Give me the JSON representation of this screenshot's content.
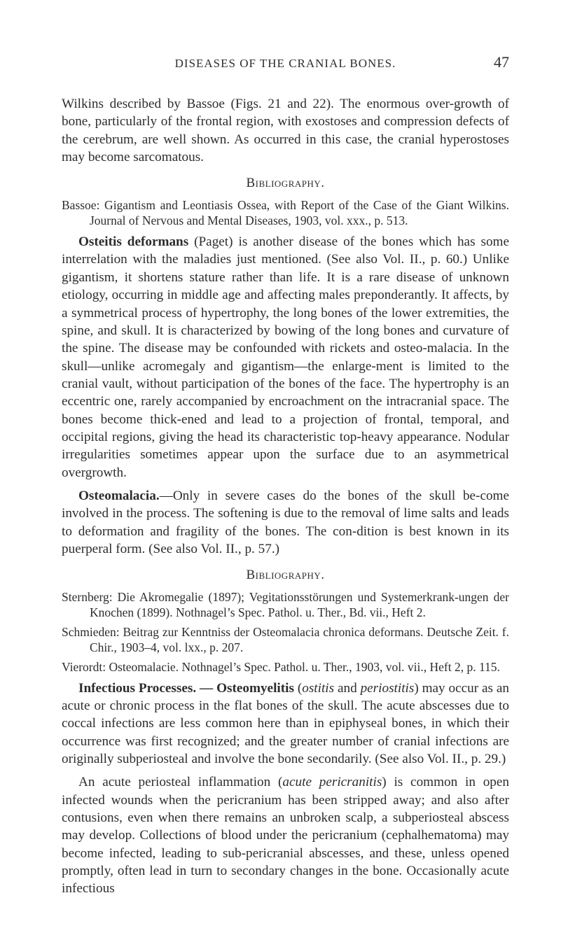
{
  "header": {
    "running_title": "DISEASES OF THE CRANIAL BONES.",
    "page_number": "47"
  },
  "para1": "Wilkins described by Bassoe (Figs. 21 and 22). The enormous over-growth of bone, particularly of the frontal region, with exostoses and compression defects of the cerebrum, are well shown. As occurred in this case, the cranial hyperostoses may become sarcomatous.",
  "bib1": {
    "heading": "Bibliography.",
    "entry": "Bassoe: Gigantism and Leontiasis Ossea, with Report of the Case of the Giant Wilkins. Journal of Nervous and Mental Diseases, 1903, vol. xxx., p. 513."
  },
  "para2": {
    "lead": "Osteitis deformans",
    "rest": " (Paget) is another disease of the bones which has some interrelation with the maladies just mentioned. (See also Vol. II., p. 60.) Unlike gigantism, it shortens stature rather than life. It is a rare disease of unknown etiology, occurring in middle age and affecting males preponderantly. It affects, by a symmetrical process of hypertrophy, the long bones of the lower extremities, the spine, and skull. It is characterized by bowing of the long bones and curvature of the spine. The disease may be confounded with rickets and osteo-malacia. In the skull—unlike acromegaly and gigantism—the enlarge-ment is limited to the cranial vault, without participation of the bones of the face. The hypertrophy is an eccentric one, rarely accompanied by encroachment on the intracranial space. The bones become thick-ened and lead to a projection of frontal, temporal, and occipital regions, giving the head its characteristic top-heavy appearance. Nodular irregularities sometimes appear upon the surface due to an asymmetrical overgrowth."
  },
  "para3": {
    "lead": "Osteomalacia.",
    "rest": "—Only in severe cases do the bones of the skull be-come involved in the process. The softening is due to the removal of lime salts and leads to deformation and fragility of the bones. The con-dition is best known in its puerperal form. (See also Vol. II., p. 57.)"
  },
  "bib2": {
    "heading": "Bibliography.",
    "entry1": "Sternberg: Die Akromegalie (1897); Vegitationsstörungen und Systemerkrank-ungen der Knochen (1899). Nothnagel’s Spec. Pathol. u. Ther., Bd. vii., Heft 2.",
    "entry2": "Schmieden: Beitrag zur Kenntniss der Osteomalacia chronica deformans. Deutsche Zeit. f. Chir., 1903–4, vol. lxx., p. 207.",
    "entry3": "Vierordt: Osteomalacie. Nothnagel’s Spec. Pathol. u. Ther., 1903, vol. vii., Heft 2, p. 115."
  },
  "para4": {
    "lead": "Infectious Processes. — Osteomyelitis",
    "mid1": " (",
    "it1": "ostitis",
    "mid2": " and ",
    "it2": "periostitis",
    "rest": ") may occur as an acute or chronic process in the flat bones of the skull. The acute abscesses due to coccal infections are less common here than in epiphyseal bones, in which their occurrence was first recognized; and the greater number of cranial infections are originally subperiosteal and involve the bone secondarily. (See also Vol. II., p. 29.)"
  },
  "para5": {
    "pre": "An acute periosteal inflammation (",
    "it": "acute pericranitis",
    "rest": ") is common in open infected wounds when the pericranium has been stripped away; and also after contusions, even when there remains an unbroken scalp, a subperiosteal abscess may develop. Collections of blood under the pericranium (cephalhematoma) may become infected, leading to sub-pericranial abscesses, and these, unless opened promptly, often lead in turn to secondary changes in the bone. Occasionally acute infectious"
  }
}
